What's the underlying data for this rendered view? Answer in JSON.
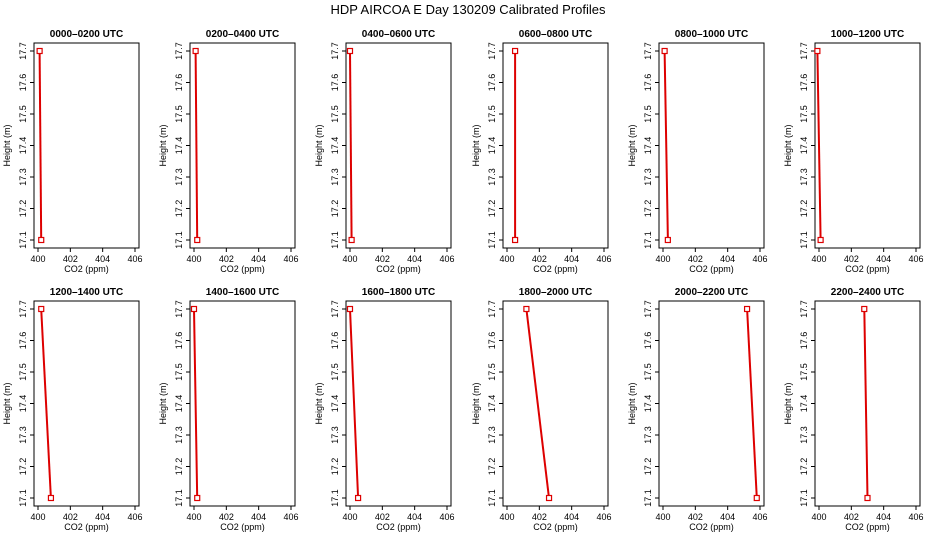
{
  "title": "HDP AIRCOA E  Day 130209  Calibrated Profiles",
  "colors": {
    "profile": "#dd0000",
    "axis": "#000000"
  },
  "chart_data": [
    {
      "type": "line",
      "title": "0000–0200 UTC",
      "xlabel": "CO2 (ppm)",
      "ylabel": "Height (m)",
      "xlim": [
        400,
        406
      ],
      "ylim": [
        17.1,
        17.7
      ],
      "xticks": [
        "400",
        "402",
        "404",
        "406"
      ],
      "yticks": [
        "17.1",
        "17.2",
        "17.3",
        "17.4",
        "17.5",
        "17.6",
        "17.7"
      ],
      "series": [
        {
          "x": [
            400.2,
            400.1
          ],
          "y": [
            17.1,
            17.7
          ]
        }
      ]
    },
    {
      "type": "line",
      "title": "0200–0400 UTC",
      "xlabel": "CO2 (ppm)",
      "ylabel": "Height (m)",
      "xlim": [
        400,
        406
      ],
      "ylim": [
        17.1,
        17.7
      ],
      "xticks": [
        "400",
        "402",
        "404",
        "406"
      ],
      "yticks": [
        "17.1",
        "17.2",
        "17.3",
        "17.4",
        "17.5",
        "17.6",
        "17.7"
      ],
      "series": [
        {
          "x": [
            400.2,
            400.1
          ],
          "y": [
            17.1,
            17.7
          ]
        }
      ]
    },
    {
      "type": "line",
      "title": "0400–0600 UTC",
      "xlabel": "CO2 (ppm)",
      "ylabel": "Height (m)",
      "xlim": [
        400,
        406
      ],
      "ylim": [
        17.1,
        17.7
      ],
      "xticks": [
        "400",
        "402",
        "404",
        "406"
      ],
      "yticks": [
        "17.1",
        "17.2",
        "17.3",
        "17.4",
        "17.5",
        "17.6",
        "17.7"
      ],
      "series": [
        {
          "x": [
            400.1,
            400.0
          ],
          "y": [
            17.1,
            17.7
          ]
        }
      ]
    },
    {
      "type": "line",
      "title": "0600–0800 UTC",
      "xlabel": "CO2 (ppm)",
      "ylabel": "Height (m)",
      "xlim": [
        400,
        406
      ],
      "ylim": [
        17.1,
        17.7
      ],
      "xticks": [
        "400",
        "402",
        "404",
        "406"
      ],
      "yticks": [
        "17.1",
        "17.2",
        "17.3",
        "17.4",
        "17.5",
        "17.6",
        "17.7"
      ],
      "series": [
        {
          "x": [
            400.5,
            400.5
          ],
          "y": [
            17.1,
            17.7
          ]
        }
      ]
    },
    {
      "type": "line",
      "title": "0800–1000 UTC",
      "xlabel": "CO2 (ppm)",
      "ylabel": "Height (m)",
      "xlim": [
        400,
        406
      ],
      "ylim": [
        17.1,
        17.7
      ],
      "xticks": [
        "400",
        "402",
        "404",
        "406"
      ],
      "yticks": [
        "17.1",
        "17.2",
        "17.3",
        "17.4",
        "17.5",
        "17.6",
        "17.7"
      ],
      "series": [
        {
          "x": [
            400.3,
            400.1
          ],
          "y": [
            17.1,
            17.7
          ]
        }
      ]
    },
    {
      "type": "line",
      "title": "1000–1200 UTC",
      "xlabel": "CO2 (ppm)",
      "ylabel": "Height (m)",
      "xlim": [
        400,
        406
      ],
      "ylim": [
        17.1,
        17.7
      ],
      "xticks": [
        "400",
        "402",
        "404",
        "406"
      ],
      "yticks": [
        "17.1",
        "17.2",
        "17.3",
        "17.4",
        "17.5",
        "17.6",
        "17.7"
      ],
      "series": [
        {
          "x": [
            400.1,
            399.9
          ],
          "y": [
            17.1,
            17.7
          ]
        }
      ]
    },
    {
      "type": "line",
      "title": "1200–1400 UTC",
      "xlabel": "CO2 (ppm)",
      "ylabel": "Height (m)",
      "xlim": [
        400,
        406
      ],
      "ylim": [
        17.1,
        17.7
      ],
      "xticks": [
        "400",
        "402",
        "404",
        "406"
      ],
      "yticks": [
        "17.1",
        "17.2",
        "17.3",
        "17.4",
        "17.5",
        "17.6",
        "17.7"
      ],
      "series": [
        {
          "x": [
            400.8,
            400.2
          ],
          "y": [
            17.1,
            17.7
          ]
        }
      ]
    },
    {
      "type": "line",
      "title": "1400–1600 UTC",
      "xlabel": "CO2 (ppm)",
      "ylabel": "Height (m)",
      "xlim": [
        400,
        406
      ],
      "ylim": [
        17.1,
        17.7
      ],
      "xticks": [
        "400",
        "402",
        "404",
        "406"
      ],
      "yticks": [
        "17.1",
        "17.2",
        "17.3",
        "17.4",
        "17.5",
        "17.6",
        "17.7"
      ],
      "series": [
        {
          "x": [
            400.2,
            400.0
          ],
          "y": [
            17.1,
            17.7
          ]
        }
      ]
    },
    {
      "type": "line",
      "title": "1600–1800 UTC",
      "xlabel": "CO2 (ppm)",
      "ylabel": "Height (m)",
      "xlim": [
        400,
        406
      ],
      "ylim": [
        17.1,
        17.7
      ],
      "xticks": [
        "400",
        "402",
        "404",
        "406"
      ],
      "yticks": [
        "17.1",
        "17.2",
        "17.3",
        "17.4",
        "17.5",
        "17.6",
        "17.7"
      ],
      "series": [
        {
          "x": [
            400.5,
            400.0
          ],
          "y": [
            17.1,
            17.7
          ]
        }
      ]
    },
    {
      "type": "line",
      "title": "1800–2000 UTC",
      "xlabel": "CO2 (ppm)",
      "ylabel": "Height (m)",
      "xlim": [
        400,
        406
      ],
      "ylim": [
        17.1,
        17.7
      ],
      "xticks": [
        "400",
        "402",
        "404",
        "406"
      ],
      "yticks": [
        "17.1",
        "17.2",
        "17.3",
        "17.4",
        "17.5",
        "17.6",
        "17.7"
      ],
      "series": [
        {
          "x": [
            402.6,
            401.2
          ],
          "y": [
            17.1,
            17.7
          ]
        }
      ]
    },
    {
      "type": "line",
      "title": "2000–2200 UTC",
      "xlabel": "CO2 (ppm)",
      "ylabel": "Height (m)",
      "xlim": [
        400,
        406
      ],
      "ylim": [
        17.1,
        17.7
      ],
      "xticks": [
        "400",
        "402",
        "404",
        "406"
      ],
      "yticks": [
        "17.1",
        "17.2",
        "17.3",
        "17.4",
        "17.5",
        "17.6",
        "17.7"
      ],
      "series": [
        {
          "x": [
            405.8,
            405.2
          ],
          "y": [
            17.1,
            17.7
          ]
        }
      ]
    },
    {
      "type": "line",
      "title": "2200–2400 UTC",
      "xlabel": "CO2 (ppm)",
      "ylabel": "Height (m)",
      "xlim": [
        400,
        406
      ],
      "ylim": [
        17.1,
        17.7
      ],
      "xticks": [
        "400",
        "402",
        "404",
        "406"
      ],
      "yticks": [
        "17.1",
        "17.2",
        "17.3",
        "17.4",
        "17.5",
        "17.6",
        "17.7"
      ],
      "series": [
        {
          "x": [
            403.0,
            402.8
          ],
          "y": [
            17.1,
            17.7
          ]
        }
      ]
    }
  ]
}
